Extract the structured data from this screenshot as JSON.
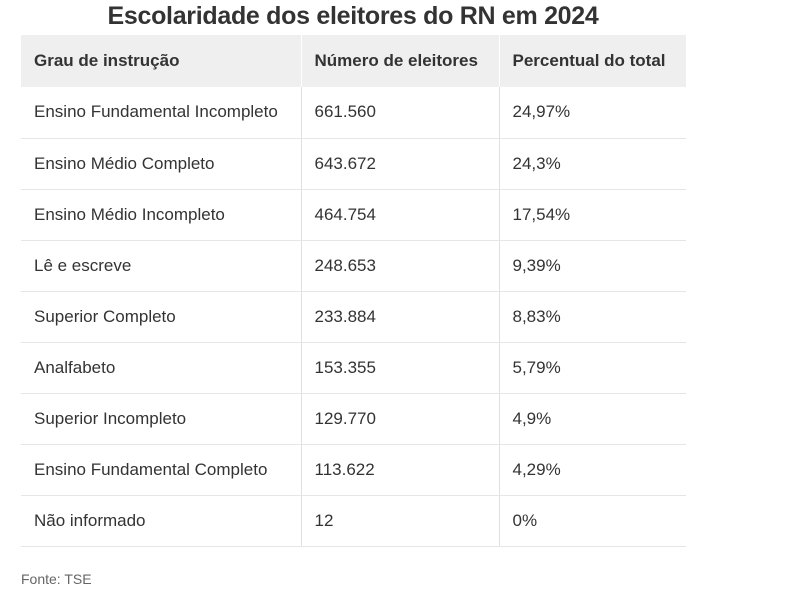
{
  "title": "Escolaridade dos eleitores do RN em 2024",
  "table": {
    "headers": [
      "Grau de instrução",
      "Número de eleitores",
      "Percentual do total"
    ],
    "rows": [
      [
        "Ensino Fundamental Incompleto",
        "661.560",
        "24,97%"
      ],
      [
        "Ensino Médio Completo",
        "643.672",
        "24,3%"
      ],
      [
        "Ensino Médio Incompleto",
        "464.754",
        "17,54%"
      ],
      [
        "Lê e escreve",
        "248.653",
        "9,39%"
      ],
      [
        "Superior Completo",
        "233.884",
        "8,83%"
      ],
      [
        "Analfabeto",
        "153.355",
        "5,79%"
      ],
      [
        "Superior Incompleto",
        "129.770",
        "4,9%"
      ],
      [
        "Ensino Fundamental Completo",
        "113.622",
        "4,29%"
      ],
      [
        "Não informado",
        "12",
        "0%"
      ]
    ]
  },
  "source": "Fonte: TSE",
  "colors": {
    "header_bg": "#efefef",
    "text": "#333333",
    "row_border": "#e6e6e6"
  }
}
